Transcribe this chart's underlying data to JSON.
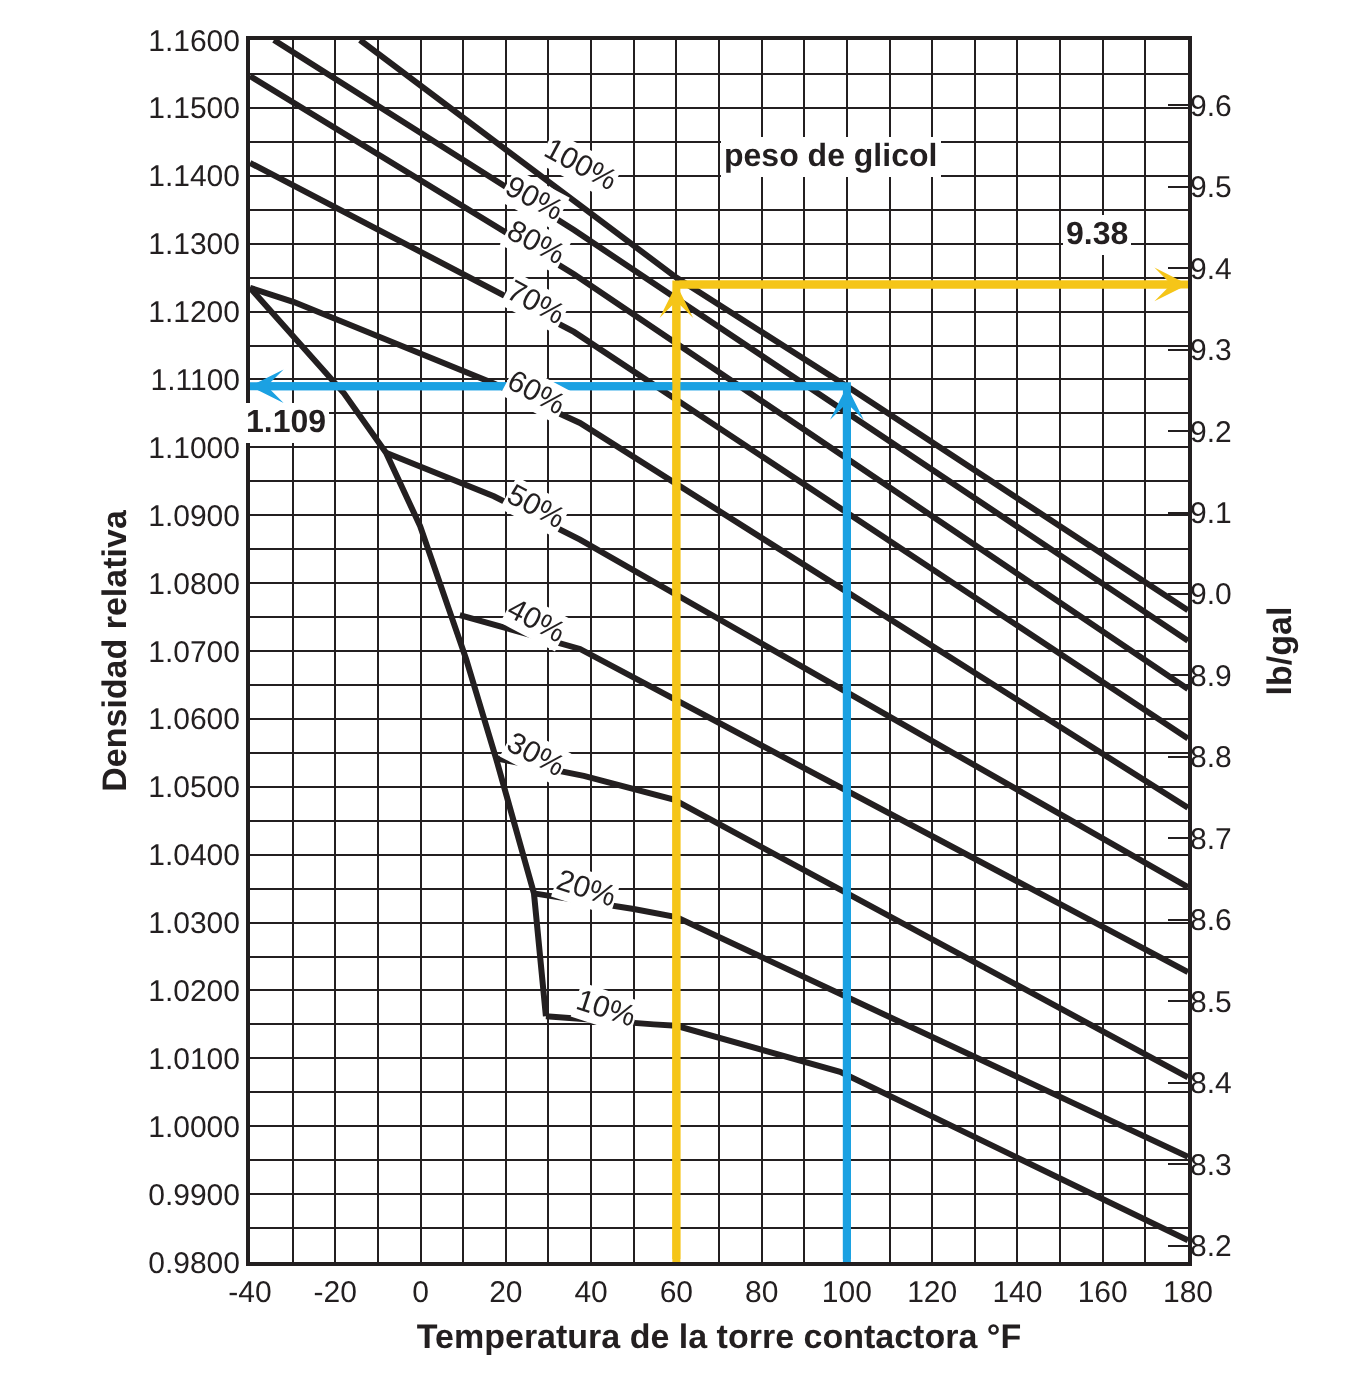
{
  "chart_data": {
    "type": "line",
    "xlabel": "Temperatura de la torre contactora °F",
    "ylabel": "Densidad relativa",
    "y2label": "lb/gal",
    "xlim": [
      -40,
      180
    ],
    "ylim": [
      0.98,
      1.16
    ],
    "y2lim": [
      8.18,
      9.68
    ],
    "xticks": [
      -40,
      {
        "value": -30,
        "label": null
      },
      -20,
      {
        "value": -10,
        "label": null
      },
      0,
      {
        "value": 10,
        "label": null
      },
      20,
      {
        "value": 30,
        "label": null
      },
      40,
      {
        "value": 50,
        "label": null
      },
      60,
      {
        "value": 70,
        "label": null
      },
      80,
      {
        "value": 90,
        "label": null
      },
      100,
      {
        "value": 110,
        "label": null
      },
      120,
      {
        "value": 130,
        "label": null
      },
      140,
      {
        "value": 150,
        "label": null
      },
      160,
      {
        "value": 170,
        "label": null
      },
      180
    ],
    "yticks": [
      {
        "value": 0.98,
        "label": "0.9800"
      },
      {
        "value": 0.985,
        "label": null
      },
      {
        "value": 0.99,
        "label": "0.9900"
      },
      {
        "value": 0.995,
        "label": null
      },
      {
        "value": 1.0,
        "label": "1.0000"
      },
      {
        "value": 1.005,
        "label": null
      },
      {
        "value": 1.01,
        "label": "1.0100"
      },
      {
        "value": 1.015,
        "label": null
      },
      {
        "value": 1.02,
        "label": "1.0200"
      },
      {
        "value": 1.025,
        "label": null
      },
      {
        "value": 1.03,
        "label": "1.0300"
      },
      {
        "value": 1.035,
        "label": null
      },
      {
        "value": 1.04,
        "label": "1.0400"
      },
      {
        "value": 1.045,
        "label": null
      },
      {
        "value": 1.05,
        "label": "1.0500"
      },
      {
        "value": 1.055,
        "label": null
      },
      {
        "value": 1.06,
        "label": "1.0600"
      },
      {
        "value": 1.065,
        "label": null
      },
      {
        "value": 1.07,
        "label": "1.0700"
      },
      {
        "value": 1.075,
        "label": null
      },
      {
        "value": 1.08,
        "label": "1.0800"
      },
      {
        "value": 1.085,
        "label": null
      },
      {
        "value": 1.09,
        "label": "1.0900"
      },
      {
        "value": 1.095,
        "label": null
      },
      {
        "value": 1.1,
        "label": "1.1000"
      },
      {
        "value": 1.105,
        "label": null
      },
      {
        "value": 1.11,
        "label": "1.1100"
      },
      {
        "value": 1.115,
        "label": null
      },
      {
        "value": 1.12,
        "label": "1.1200"
      },
      {
        "value": 1.125,
        "label": null
      },
      {
        "value": 1.13,
        "label": "1.1300"
      },
      {
        "value": 1.135,
        "label": null
      },
      {
        "value": 1.14,
        "label": "1.1400"
      },
      {
        "value": 1.145,
        "label": null
      },
      {
        "value": 1.15,
        "label": "1.1500"
      },
      {
        "value": 1.155,
        "label": null
      },
      {
        "value": 1.16,
        "label": "1.1600"
      }
    ],
    "y2ticks": [
      8.2,
      8.3,
      8.4,
      8.5,
      8.6,
      8.7,
      8.8,
      8.9,
      {
        "value": 9.0,
        "label": "9.0"
      },
      9.1,
      9.2,
      9.3,
      9.4,
      9.5,
      9.6
    ],
    "grid": true,
    "series": [
      {
        "color": "#231f20",
        "x": [
          -14.2,
          60,
          100,
          180
        ],
        "values": [
          1.16,
          1.125,
          1.109,
          1.076
        ]
      },
      {
        "color": "#231f20",
        "x": [
          -34.4,
          36,
          180
        ],
        "values": [
          1.16,
          1.132,
          1.0715
        ]
      },
      {
        "color": "#231f20",
        "x": [
          -40,
          36,
          180
        ],
        "values": [
          1.1547,
          1.1255,
          1.0644
        ]
      },
      {
        "color": "#231f20",
        "x": [
          -40,
          36,
          180
        ],
        "values": [
          1.1419,
          1.117,
          1.0571
        ]
      },
      {
        "color": "#231f20",
        "x": [
          -40,
          -29.7,
          17.2,
          37.4,
          180
        ],
        "values": [
          1.1235,
          1.1214,
          1.1094,
          1.1036,
          1.0469
        ]
      },
      {
        "color": "#231f20",
        "x": [
          -8.1,
          17.2,
          37.4,
          180
        ],
        "values": [
          1.0992,
          1.0928,
          1.0864,
          1.0352
        ]
      },
      {
        "color": "#231f20",
        "x": [
          9.2,
          37.4,
          180
        ],
        "values": [
          1.0753,
          1.0703,
          1.0227
        ]
      },
      {
        "color": "#231f20",
        "x": [
          17.7,
          38.3,
          59.4,
          180
        ],
        "values": [
          1.0542,
          1.0516,
          1.0481,
          1.0072
        ]
      },
      {
        "color": "#231f20",
        "x": [
          26.6,
          50,
          60,
          180
        ],
        "values": [
          1.0343,
          1.032,
          1.0308,
          0.9955
        ]
      },
      {
        "color": "#231f20",
        "x": [
          29.4,
          54.7,
          60,
          98.4,
          180
        ],
        "values": [
          1.0162,
          1.015,
          1.0148,
          1.008,
          0.9832
        ]
      },
      {
        "color": "#231f20",
        "x": [
          -40,
          -18,
          -8.1,
          -0.1,
          10.7,
          17.7,
          26.6,
          29.4
        ],
        "values": [
          1.1235,
          1.108,
          1.0992,
          1.0884,
          1.0688,
          1.0542,
          1.0343,
          1.0162
        ]
      },
      {
        "color": "#1ba1e2",
        "x": [
          100,
          100,
          -40
        ],
        "values": [
          0.98,
          1.109,
          1.109
        ]
      },
      {
        "color": "#f5c518",
        "axis": "y2",
        "x": [
          60,
          60,
          180
        ],
        "values": [
          8.18,
          9.38,
          9.38
        ]
      }
    ],
    "annotations": [
      {
        "text": "100%",
        "x": 37.4,
        "y": 1.1416
      },
      {
        "text": "90%",
        "x": 26.6,
        "y": 1.1366
      },
      {
        "text": "80%",
        "x": 27,
        "y": 1.1302
      },
      {
        "text": "70%",
        "x": 27,
        "y": 1.1214
      },
      {
        "text": "60%",
        "x": 27,
        "y": 1.108
      },
      {
        "text": "50%",
        "x": 27,
        "y": 1.0913
      },
      {
        "text": "40%",
        "x": 27,
        "y": 1.0744
      },
      {
        "text": "30%",
        "x": 27,
        "y": 1.0548
      },
      {
        "text": "20%",
        "x": 38.8,
        "y": 1.0349
      },
      {
        "text": "10%",
        "x": 43.5,
        "y": 1.0174
      },
      "peso de glicol",
      {
        "text": "1.109",
        "x": -40,
        "y": 1.109
      },
      "9.38"
    ]
  }
}
